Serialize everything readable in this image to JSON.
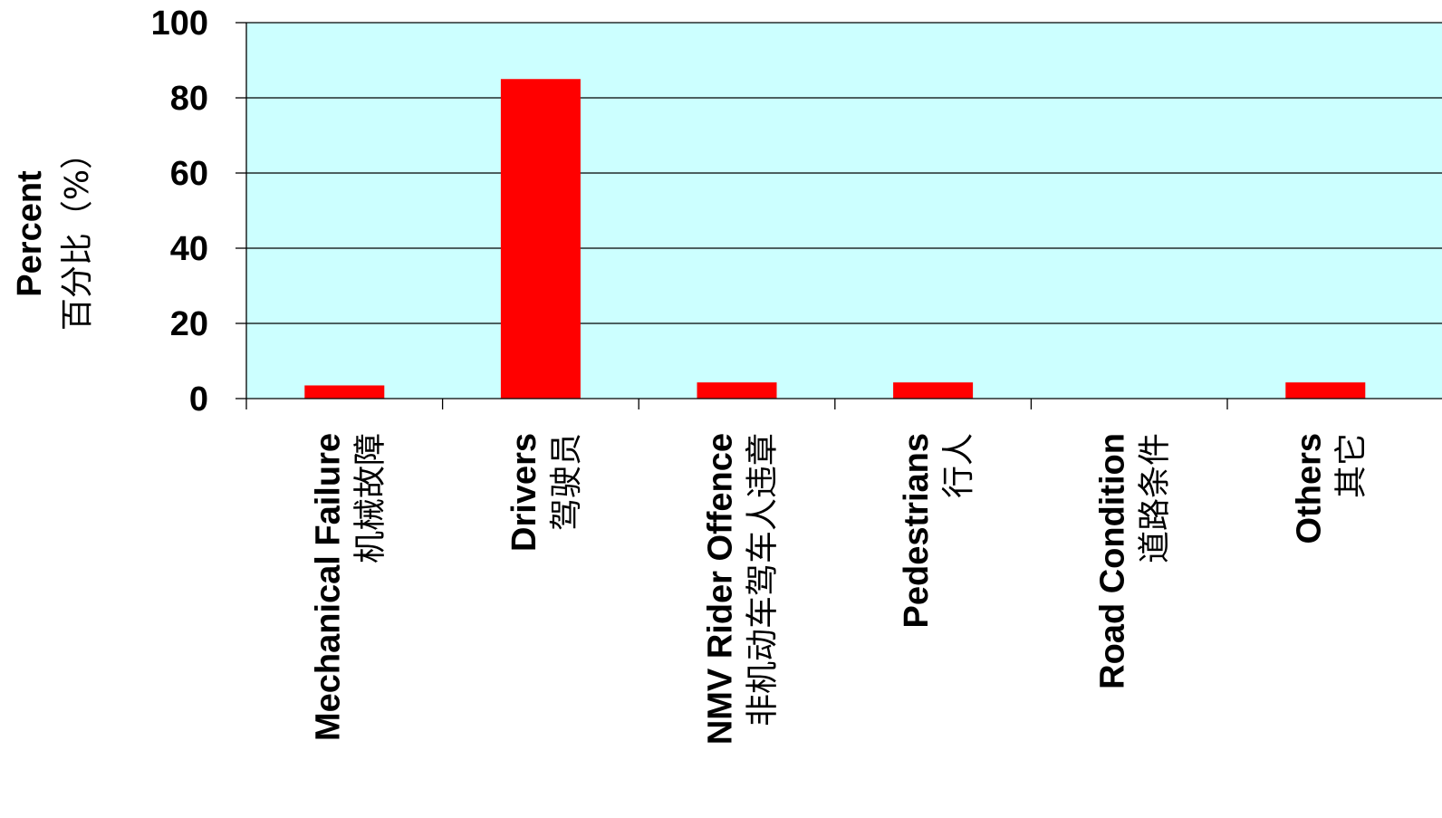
{
  "chart_data": {
    "type": "bar",
    "ylabel": "Percent",
    "ylabel_zh": "百分比（%）",
    "ylim": [
      0,
      100
    ],
    "yticks": [
      0,
      20,
      40,
      60,
      80,
      100
    ],
    "grid": true,
    "categories": [
      {
        "en": "Mechanical Failure",
        "zh": "机械故障"
      },
      {
        "en": "Drivers",
        "zh": "驾驶员"
      },
      {
        "en": "NMV Rider Offence",
        "zh": "非机动车驾车人违章"
      },
      {
        "en": "Pedestrians",
        "zh": "行人"
      },
      {
        "en": "Road Condition",
        "zh": "道路条件"
      },
      {
        "en": "Others",
        "zh": "其它"
      }
    ],
    "values": [
      3.5,
      85,
      4.3,
      4.3,
      0,
      4.3
    ],
    "colors": {
      "plot_background": "#ccffff",
      "bar": "#ff0000",
      "grid": "#000000"
    }
  }
}
